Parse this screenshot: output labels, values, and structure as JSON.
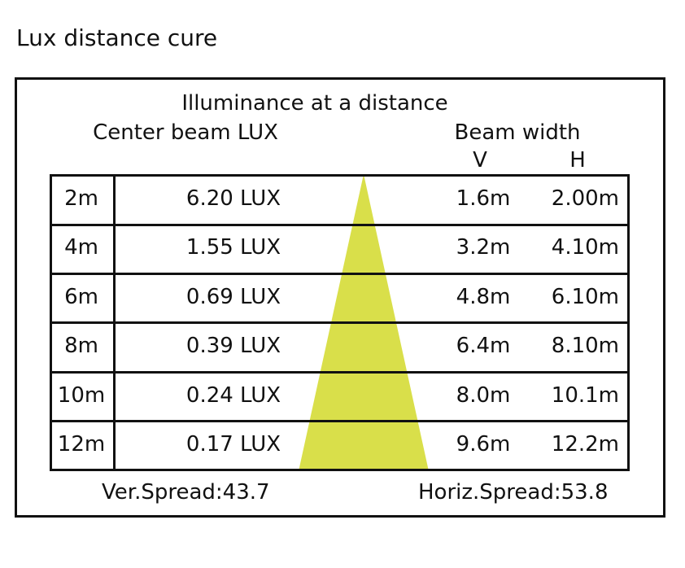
{
  "title": "Lux distance cure",
  "headers": {
    "main": "Illuminance at a distance",
    "lux": "Center beam LUX",
    "beam_width": "Beam width",
    "v": "V",
    "h": "H"
  },
  "rows": [
    {
      "distance": "2m",
      "lux": "6.20 LUX",
      "v": "1.6m",
      "h": "2.00m"
    },
    {
      "distance": "4m",
      "lux": "1.55 LUX",
      "v": "3.2m",
      "h": "4.10m"
    },
    {
      "distance": "6m",
      "lux": "0.69 LUX",
      "v": "4.8m",
      "h": "6.10m"
    },
    {
      "distance": "8m",
      "lux": "0.39 LUX",
      "v": "6.4m",
      "h": "8.10m"
    },
    {
      "distance": "10m",
      "lux": "0.24 LUX",
      "v": "8.0m",
      "h": "10.1m"
    },
    {
      "distance": "12m",
      "lux": "0.17 LUX",
      "v": "9.6m",
      "h": "12.2m"
    }
  ],
  "footer": {
    "ver_spread": "Ver.Spread:43.7",
    "horiz_spread": "Horiz.Spread:53.8"
  },
  "colors": {
    "beam": "#d9df4a",
    "line": "#111111"
  },
  "icons": {
    "beam": "beam-cone-icon"
  }
}
